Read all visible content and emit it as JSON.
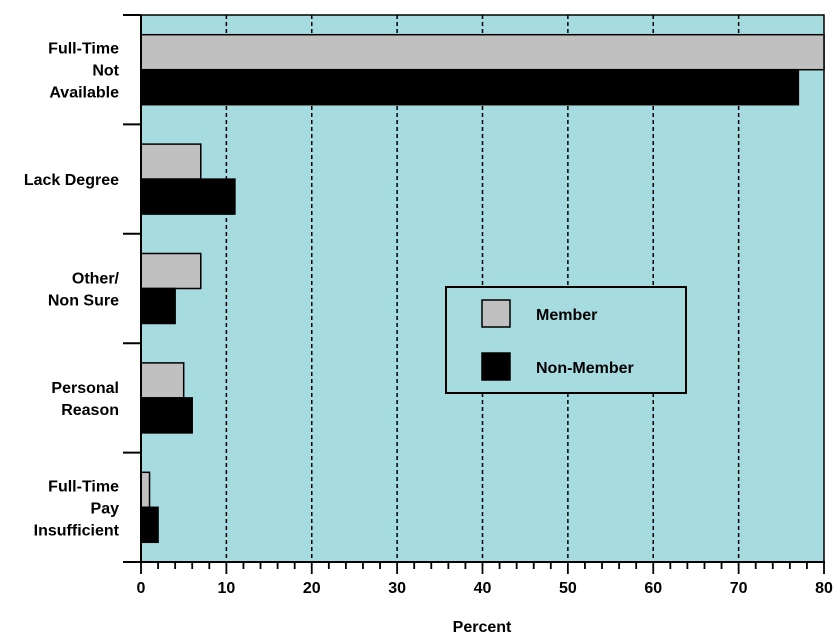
{
  "chart_data": {
    "type": "bar",
    "orientation": "horizontal",
    "categories": [
      [
        "Full-Time",
        "Not",
        "Available"
      ],
      [
        "Lack Degree"
      ],
      [
        "Other/",
        "Non Sure"
      ],
      [
        "Personal",
        "Reason"
      ],
      [
        "Full-Time",
        "Pay",
        "Insufficient"
      ]
    ],
    "series": [
      {
        "name": "Member",
        "values": [
          80,
          7,
          7,
          5,
          1
        ],
        "color": "#c0c0c0"
      },
      {
        "name": "Non-Member",
        "values": [
          77,
          11,
          4,
          6,
          2
        ],
        "color": "#000000"
      }
    ],
    "xlabel": "Percent",
    "xlim": [
      0,
      80
    ],
    "xticks": [
      0,
      10,
      20,
      30,
      40,
      50,
      60,
      70,
      80
    ],
    "grid": "vertical dashed",
    "plot_background": "#a6dbe0",
    "legend": {
      "placement": "center-right"
    }
  }
}
